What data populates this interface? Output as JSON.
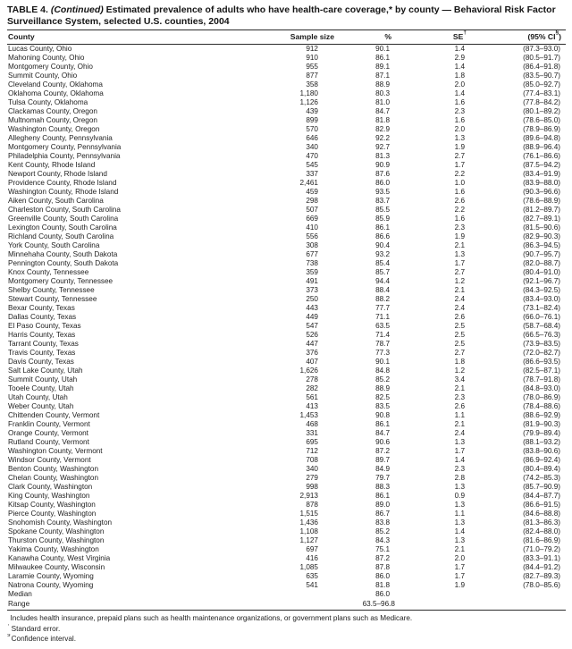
{
  "title": {
    "table_label": "TABLE 4.",
    "continued": "(Continued)",
    "text": "Estimated prevalence of adults who have health-care coverage,* by county — Behavioral Risk Factor Surveillance System, selected U.S. counties, 2004"
  },
  "columns": [
    {
      "text": "County",
      "sup": "",
      "post": ""
    },
    {
      "text": "Sample size",
      "sup": "",
      "post": ""
    },
    {
      "text": "%",
      "sup": "",
      "post": ""
    },
    {
      "text": "SE",
      "sup": "†",
      "post": ""
    },
    {
      "text": "(95% CI",
      "sup": "§",
      "post": ")"
    }
  ],
  "rows": [
    [
      "Lucas County, Ohio",
      "912",
      "90.1",
      "1.4",
      "(87.3–93.0)"
    ],
    [
      "Mahoning County, Ohio",
      "910",
      "86.1",
      "2.9",
      "(80.5–91.7)"
    ],
    [
      "Montgomery County, Ohio",
      "955",
      "89.1",
      "1.4",
      "(86.4–91.8)"
    ],
    [
      "Summit County, Ohio",
      "877",
      "87.1",
      "1.8",
      "(83.5–90.7)"
    ],
    [
      "Cleveland County, Oklahoma",
      "358",
      "88.9",
      "2.0",
      "(85.0–92.7)"
    ],
    [
      "Oklahoma County, Oklahoma",
      "1,180",
      "80.3",
      "1.4",
      "(77.4–83.1)"
    ],
    [
      "Tulsa County, Oklahoma",
      "1,126",
      "81.0",
      "1.6",
      "(77.8–84.2)"
    ],
    [
      "Clackamas County, Oregon",
      "439",
      "84.7",
      "2.3",
      "(80.1–89.2)"
    ],
    [
      "Multnomah County, Oregon",
      "899",
      "81.8",
      "1.6",
      "(78.6–85.0)"
    ],
    [
      "Washington County, Oregon",
      "570",
      "82.9",
      "2.0",
      "(78.9–86.9)"
    ],
    [
      "Allegheny County, Pennsylvania",
      "646",
      "92.2",
      "1.3",
      "(89.6–94.8)"
    ],
    [
      "Montgomery County, Pennsylvania",
      "340",
      "92.7",
      "1.9",
      "(88.9–96.4)"
    ],
    [
      "Philadelphia County, Pennsylvania",
      "470",
      "81.3",
      "2.7",
      "(76.1–86.6)"
    ],
    [
      "Kent County, Rhode Island",
      "545",
      "90.9",
      "1.7",
      "(87.5–94.2)"
    ],
    [
      "Newport County, Rhode Island",
      "337",
      "87.6",
      "2.2",
      "(83.4–91.9)"
    ],
    [
      "Providence County, Rhode Island",
      "2,461",
      "86.0",
      "1.0",
      "(83.9–88.0)"
    ],
    [
      "Washington County, Rhode Island",
      "459",
      "93.5",
      "1.6",
      "(90.3–96.6)"
    ],
    [
      "Aiken County, South Carolina",
      "298",
      "83.7",
      "2.6",
      "(78.6–88.9)"
    ],
    [
      "Charleston County, South Carolina",
      "507",
      "85.5",
      "2.2",
      "(81.2–89.7)"
    ],
    [
      "Greenville County, South Carolina",
      "669",
      "85.9",
      "1.6",
      "(82.7–89.1)"
    ],
    [
      "Lexington County, South Carolina",
      "410",
      "86.1",
      "2.3",
      "(81.5–90.6)"
    ],
    [
      "Richland County, South Carolina",
      "556",
      "86.6",
      "1.9",
      "(82.9–90.3)"
    ],
    [
      "York County, South Carolina",
      "308",
      "90.4",
      "2.1",
      "(86.3–94.5)"
    ],
    [
      "Minnehaha County, South Dakota",
      "677",
      "93.2",
      "1.3",
      "(90.7–95.7)"
    ],
    [
      "Pennington County, South Dakota",
      "738",
      "85.4",
      "1.7",
      "(82.0–88.7)"
    ],
    [
      "Knox County, Tennessee",
      "359",
      "85.7",
      "2.7",
      "(80.4–91.0)"
    ],
    [
      "Montgomery County, Tennessee",
      "491",
      "94.4",
      "1.2",
      "(92.1–96.7)"
    ],
    [
      "Shelby County, Tennessee",
      "373",
      "88.4",
      "2.1",
      "(84.3–92.5)"
    ],
    [
      "Stewart County, Tennessee",
      "250",
      "88.2",
      "2.4",
      "(83.4–93.0)"
    ],
    [
      "Bexar County, Texas",
      "443",
      "77.7",
      "2.4",
      "(73.1–82.4)"
    ],
    [
      "Dallas County, Texas",
      "449",
      "71.1",
      "2.6",
      "(66.0–76.1)"
    ],
    [
      "El Paso County, Texas",
      "547",
      "63.5",
      "2.5",
      "(58.7–68.4)"
    ],
    [
      "Harris County, Texas",
      "526",
      "71.4",
      "2.5",
      "(66.5–76.3)"
    ],
    [
      "Tarrant County, Texas",
      "447",
      "78.7",
      "2.5",
      "(73.9–83.5)"
    ],
    [
      "Travis County, Texas",
      "376",
      "77.3",
      "2.7",
      "(72.0–82.7)"
    ],
    [
      "Davis County, Texas",
      "407",
      "90.1",
      "1.8",
      "(86.6–93.5)"
    ],
    [
      "Salt Lake County, Utah",
      "1,626",
      "84.8",
      "1.2",
      "(82.5–87.1)"
    ],
    [
      "Summit County, Utah",
      "278",
      "85.2",
      "3.4",
      "(78.7–91.8)"
    ],
    [
      "Tooele County, Utah",
      "282",
      "88.9",
      "2.1",
      "(84.8–93.0)"
    ],
    [
      "Utah County, Utah",
      "561",
      "82.5",
      "2.3",
      "(78.0–86.9)"
    ],
    [
      "Weber County, Utah",
      "413",
      "83.5",
      "2.6",
      "(78.4–88.6)"
    ],
    [
      "Chittenden County, Vermont",
      "1,453",
      "90.8",
      "1.1",
      "(88.6–92.9)"
    ],
    [
      "Franklin County, Vermont",
      "468",
      "86.1",
      "2.1",
      "(81.9–90.3)"
    ],
    [
      "Orange County, Vermont",
      "331",
      "84.7",
      "2.4",
      "(79.9–89.4)"
    ],
    [
      "Rutland County, Vermont",
      "695",
      "90.6",
      "1.3",
      "(88.1–93.2)"
    ],
    [
      "Washington County, Vermont",
      "712",
      "87.2",
      "1.7",
      "(83.8–90.6)"
    ],
    [
      "Windsor County, Vermont",
      "708",
      "89.7",
      "1.4",
      "(86.9–92.4)"
    ],
    [
      "Benton County, Washington",
      "340",
      "84.9",
      "2.3",
      "(80.4–89.4)"
    ],
    [
      "Chelan County, Washington",
      "279",
      "79.7",
      "2.8",
      "(74.2–85.3)"
    ],
    [
      "Clark County, Washington",
      "998",
      "88.3",
      "1.3",
      "(85.7–90.9)"
    ],
    [
      "King County, Washington",
      "2,913",
      "86.1",
      "0.9",
      "(84.4–87.7)"
    ],
    [
      "Kitsap County, Washington",
      "878",
      "89.0",
      "1.3",
      "(86.6–91.5)"
    ],
    [
      "Pierce County, Washington",
      "1,515",
      "86.7",
      "1.1",
      "(84.6–88.8)"
    ],
    [
      "Snohomish County, Washington",
      "1,436",
      "83.8",
      "1.3",
      "(81.3–86.3)"
    ],
    [
      "Spokane County, Washington",
      "1,108",
      "85.2",
      "1.4",
      "(82.4–88.0)"
    ],
    [
      "Thurston County, Washington",
      "1,127",
      "84.3",
      "1.3",
      "(81.6–86.9)"
    ],
    [
      "Yakima County, Washington",
      "697",
      "75.1",
      "2.1",
      "(71.0–79.2)"
    ],
    [
      "Kanawha County, West Virginia",
      "416",
      "87.2",
      "2.0",
      "(83.3–91.1)"
    ],
    [
      "Milwaukee County, Wisconsin",
      "1,085",
      "87.8",
      "1.7",
      "(84.4–91.2)"
    ],
    [
      "Laramie County, Wyoming",
      "635",
      "86.0",
      "1.7",
      "(82.7–89.3)"
    ],
    [
      "Natrona County, Wyoming",
      "541",
      "81.8",
      "1.9",
      "(78.0–85.6)"
    ],
    [
      "Median",
      "",
      "86.0",
      "",
      ""
    ],
    [
      "Range",
      "",
      "63.5–96.8",
      "",
      ""
    ]
  ],
  "footnotes": [
    {
      "marker": "*",
      "text": "Includes health insurance, prepaid plans such as health maintenance organizations, or government plans such as Medicare."
    },
    {
      "marker": "†",
      "text": "Standard error."
    },
    {
      "marker": "§",
      "text": "Confidence interval."
    }
  ]
}
